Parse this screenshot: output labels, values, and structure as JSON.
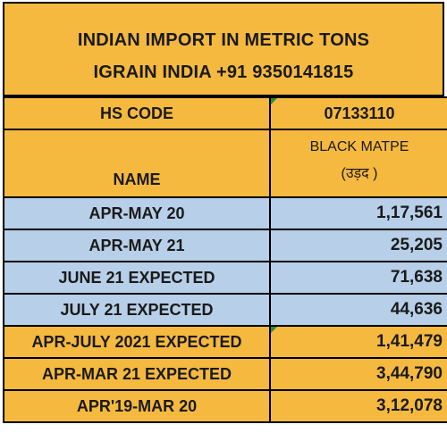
{
  "header": {
    "line1": "INDIAN IMPORT IN METRIC TONS",
    "line2": "IGRAIN INDIA +91 9350141815"
  },
  "hs_code_row": {
    "label": "HS CODE",
    "value": "07133110"
  },
  "name_row": {
    "label": "NAME",
    "product": "BLACK MATPE",
    "product_local": "(उड़द )"
  },
  "rows": [
    {
      "period": "APR-MAY 20",
      "value": "1,17,561",
      "style": "blue"
    },
    {
      "period": "APR-MAY 21",
      "value": "25,205",
      "style": "blue"
    },
    {
      "period": "JUNE 21 EXPECTED",
      "value": "71,638",
      "style": "blue"
    },
    {
      "period": "JULY 21 EXPECTED",
      "value": "44,636",
      "style": "blue"
    },
    {
      "period": "APR-JULY 2021 EXPECTED",
      "value": "1,41,479",
      "style": "gold"
    },
    {
      "period": "APR-MAR 21 EXPECTED",
      "value": "3,44,790",
      "style": "gold"
    },
    {
      "period": "APR'19-MAR 20",
      "value": "3,12,078",
      "style": "gold"
    }
  ],
  "colors": {
    "gold": "#f5b93f",
    "blue": "#b7cfe8",
    "marker": "#2e8b3a"
  }
}
